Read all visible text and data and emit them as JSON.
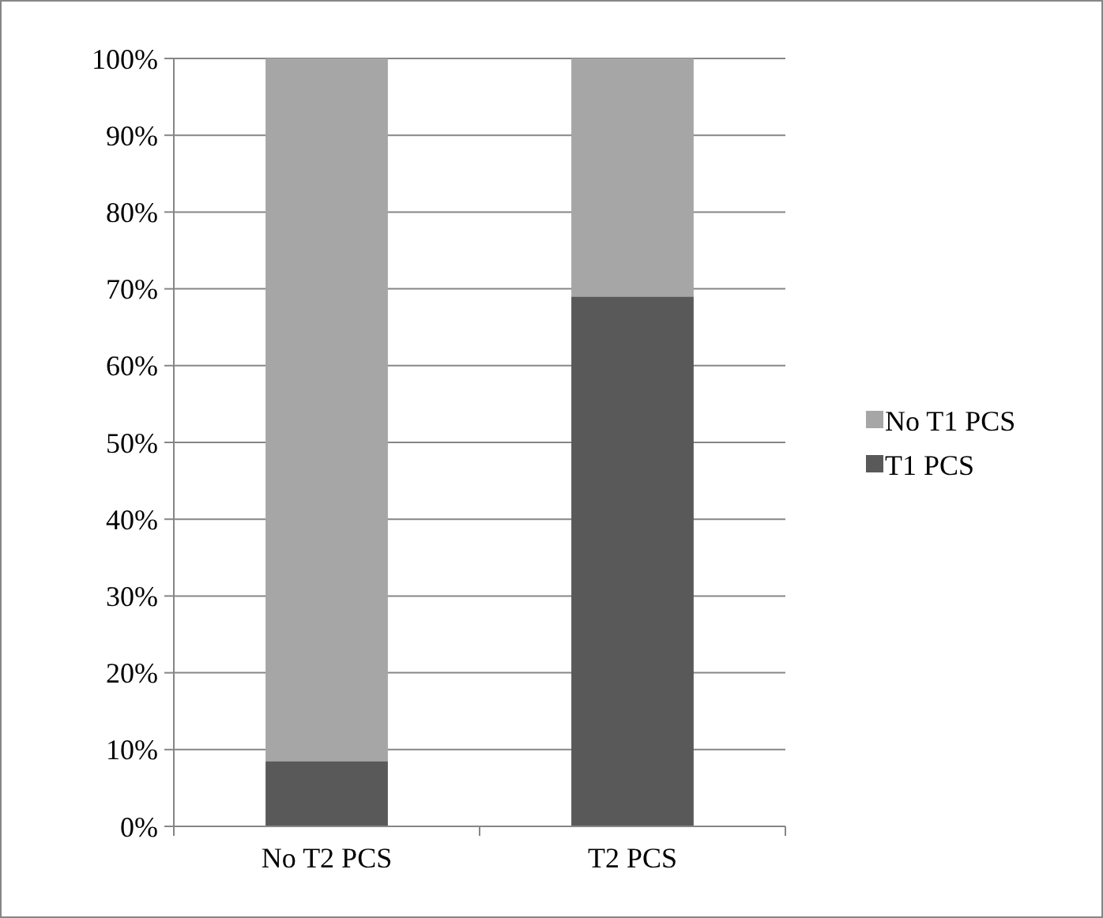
{
  "chart_data": {
    "type": "bar",
    "stacked": true,
    "categories": [
      "No T2 PCS",
      "T2 PCS"
    ],
    "series": [
      {
        "name": "T1 PCS",
        "color": "#595959",
        "values": [
          8.5,
          69
        ]
      },
      {
        "name": "No T1 PCS",
        "color": "#a6a6a6",
        "values": [
          91.5,
          31
        ]
      }
    ],
    "ylim": [
      0,
      100
    ],
    "yticks": [
      {
        "value": 0,
        "label": "0%"
      },
      {
        "value": 10,
        "label": "10%"
      },
      {
        "value": 20,
        "label": "20%"
      },
      {
        "value": 30,
        "label": "30%"
      },
      {
        "value": 40,
        "label": "40%"
      },
      {
        "value": 50,
        "label": "50%"
      },
      {
        "value": 60,
        "label": "60%"
      },
      {
        "value": 70,
        "label": "70%"
      },
      {
        "value": 80,
        "label": "80%"
      },
      {
        "value": 90,
        "label": "90%"
      },
      {
        "value": 100,
        "label": "100%"
      }
    ],
    "grid": "y",
    "legend": "right"
  }
}
